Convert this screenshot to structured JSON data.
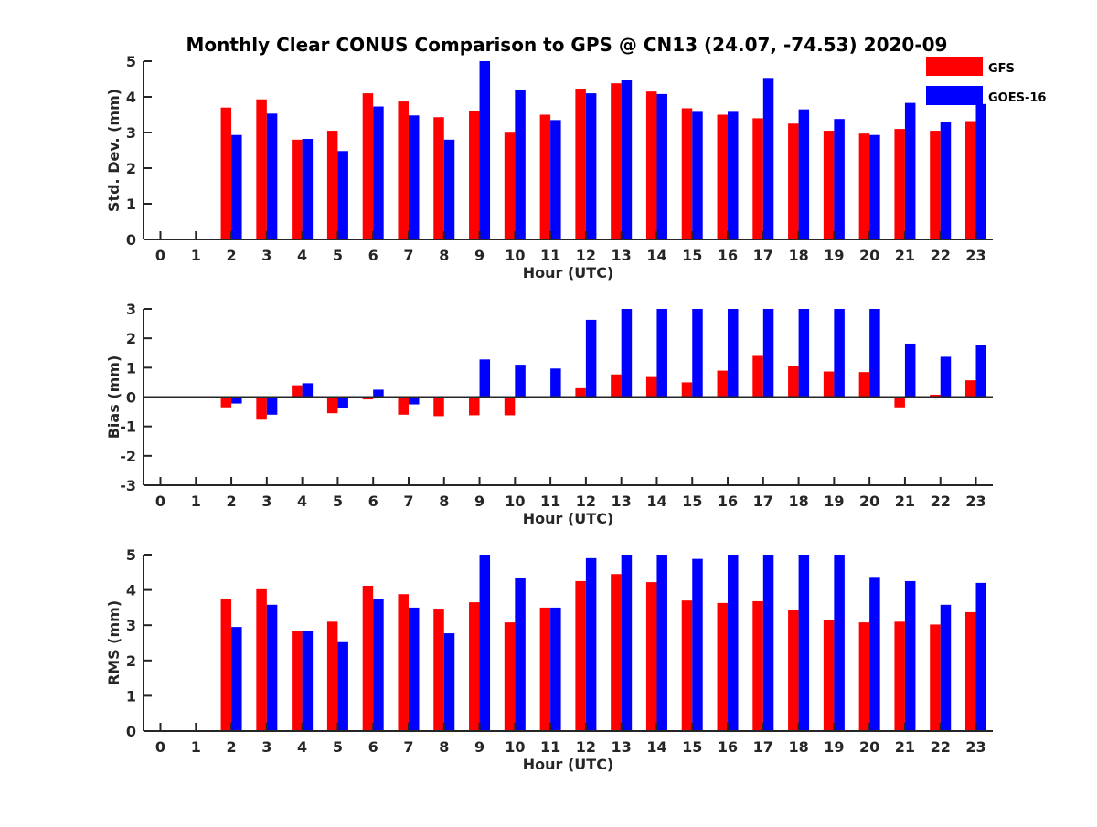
{
  "chart_data": [
    {
      "type": "bar",
      "title": "Monthly Clear CONUS Comparison to GPS @ CN13 (24.07, -74.53) 2020-09",
      "xlabel": "Hour (UTC)",
      "ylabel": "Std. Dev. (mm)",
      "ylim": [
        0,
        5
      ],
      "yticks": [
        "0",
        "1",
        "2",
        "3",
        "4",
        "5"
      ],
      "categories": [
        "0",
        "1",
        "2",
        "3",
        "4",
        "5",
        "6",
        "7",
        "8",
        "9",
        "10",
        "11",
        "12",
        "13",
        "14",
        "15",
        "16",
        "17",
        "18",
        "19",
        "20",
        "21",
        "22",
        "23"
      ],
      "series": [
        {
          "name": "GFS",
          "color": "#ff0000",
          "values": [
            null,
            null,
            3.7,
            3.93,
            2.8,
            3.05,
            4.1,
            3.87,
            3.43,
            3.6,
            3.02,
            3.5,
            4.23,
            4.38,
            4.15,
            3.68,
            3.5,
            3.4,
            3.25,
            3.05,
            2.97,
            3.1,
            3.05,
            3.32
          ]
        },
        {
          "name": "GOES-16",
          "color": "#0000ff",
          "values": [
            null,
            null,
            2.93,
            3.53,
            2.82,
            2.48,
            3.73,
            3.48,
            2.8,
            5.0,
            4.2,
            3.35,
            4.1,
            4.47,
            4.08,
            3.58,
            3.58,
            4.53,
            3.65,
            3.38,
            2.93,
            3.83,
            3.3,
            3.8
          ]
        }
      ]
    },
    {
      "type": "bar",
      "title": "",
      "xlabel": "Hour (UTC)",
      "ylabel": "Bias (mm)",
      "ylim": [
        -3,
        3
      ],
      "yticks": [
        "-3",
        "-2",
        "-1",
        "0",
        "1",
        "2",
        "3"
      ],
      "categories": [
        "0",
        "1",
        "2",
        "3",
        "4",
        "5",
        "6",
        "7",
        "8",
        "9",
        "10",
        "11",
        "12",
        "13",
        "14",
        "15",
        "16",
        "17",
        "18",
        "19",
        "20",
        "21",
        "22",
        "23"
      ],
      "series": [
        {
          "name": "GFS",
          "color": "#ff0000",
          "values": [
            null,
            null,
            -0.35,
            -0.77,
            0.4,
            -0.55,
            -0.08,
            -0.6,
            -0.65,
            -0.62,
            -0.62,
            0.0,
            0.3,
            0.77,
            0.68,
            0.5,
            0.9,
            1.4,
            1.05,
            0.87,
            0.85,
            -0.35,
            0.08,
            0.57
          ]
        },
        {
          "name": "GOES-16",
          "color": "#0000ff",
          "values": [
            null,
            null,
            -0.22,
            -0.6,
            0.47,
            -0.38,
            0.25,
            -0.25,
            -0.03,
            1.28,
            1.1,
            0.97,
            2.63,
            3.0,
            3.0,
            3.0,
            3.0,
            3.0,
            3.0,
            3.0,
            3.0,
            1.82,
            1.37,
            1.77
          ]
        }
      ]
    },
    {
      "type": "bar",
      "title": "",
      "xlabel": "Hour (UTC)",
      "ylabel": "RMS (mm)",
      "ylim": [
        0,
        5
      ],
      "yticks": [
        "0",
        "1",
        "2",
        "3",
        "4",
        "5"
      ],
      "categories": [
        "0",
        "1",
        "2",
        "3",
        "4",
        "5",
        "6",
        "7",
        "8",
        "9",
        "10",
        "11",
        "12",
        "13",
        "14",
        "15",
        "16",
        "17",
        "18",
        "19",
        "20",
        "21",
        "22",
        "23"
      ],
      "series": [
        {
          "name": "GFS",
          "color": "#ff0000",
          "values": [
            null,
            null,
            3.73,
            4.02,
            2.83,
            3.1,
            4.12,
            3.88,
            3.47,
            3.65,
            3.08,
            3.5,
            4.25,
            4.45,
            4.22,
            3.7,
            3.63,
            3.68,
            3.42,
            3.15,
            3.08,
            3.1,
            3.02,
            3.37
          ]
        },
        {
          "name": "GOES-16",
          "color": "#0000ff",
          "values": [
            null,
            null,
            2.95,
            3.58,
            2.85,
            2.52,
            3.73,
            3.5,
            2.77,
            5.0,
            4.35,
            3.5,
            4.9,
            5.0,
            5.0,
            4.88,
            5.0,
            5.0,
            5.0,
            5.0,
            4.37,
            4.25,
            3.58,
            4.2
          ]
        }
      ]
    }
  ],
  "legend": {
    "placement": "top-right",
    "items": [
      {
        "label": "GFS",
        "color": "#ff0000"
      },
      {
        "label": "GOES-16",
        "color": "#0000ff"
      }
    ]
  }
}
